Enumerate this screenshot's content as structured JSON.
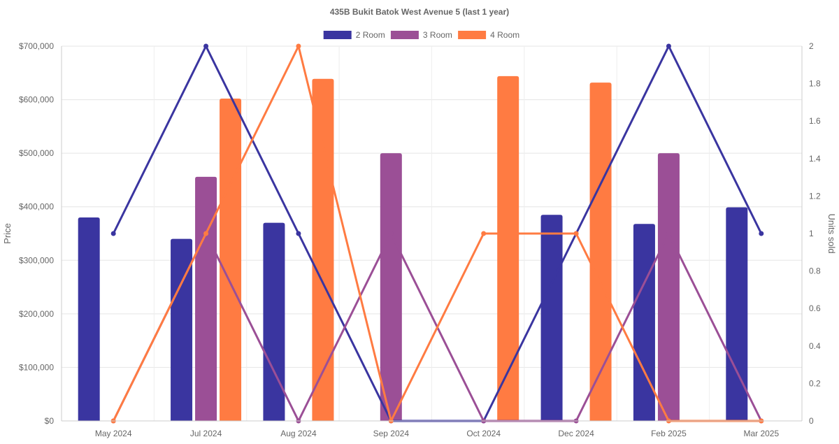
{
  "chart_data": {
    "type": "bar+line",
    "title": "435B Bukit Batok West Avenue 5 (last 1 year)",
    "categories": [
      "May 2024",
      "Jul 2024",
      "Aug 2024",
      "Sep 2024",
      "Oct 2024",
      "Dec 2024",
      "Feb 2025",
      "Mar 2025"
    ],
    "y_left": {
      "label": "Price",
      "min": 0,
      "max": 700000,
      "ticks": [
        0,
        100000,
        200000,
        300000,
        400000,
        500000,
        600000,
        700000
      ],
      "tick_labels": [
        "$0",
        "$100,000",
        "$200,000",
        "$300,000",
        "$400,000",
        "$500,000",
        "$600,000",
        "$700,000"
      ]
    },
    "y_right": {
      "label": "Units sold",
      "min": 0,
      "max": 2,
      "ticks": [
        0,
        0.2,
        0.4,
        0.6,
        0.8,
        1,
        1.2,
        1.4,
        1.6,
        1.8,
        2
      ],
      "tick_labels": [
        "0",
        "0.2",
        "0.4",
        "0.6",
        "0.8",
        "1",
        "1.2",
        "1.4",
        "1.6",
        "1.8",
        "2"
      ]
    },
    "legend": {
      "position": "top-center",
      "items": [
        {
          "name": "2 Room",
          "color": "#3a35a0"
        },
        {
          "name": "3 Room",
          "color": "#9b4f96"
        },
        {
          "name": "4 Room",
          "color": "#ff7b42"
        }
      ]
    },
    "bar_series": [
      {
        "name": "2 Room",
        "color": "#3a35a0",
        "values": [
          380000,
          340000,
          370000,
          null,
          null,
          385000,
          368000,
          399000
        ]
      },
      {
        "name": "3 Room",
        "color": "#9b4f96",
        "values": [
          null,
          456000,
          null,
          500000,
          null,
          null,
          500000,
          null
        ]
      },
      {
        "name": "4 Room",
        "color": "#ff7b42",
        "values": [
          null,
          602000,
          639000,
          null,
          644000,
          632000,
          null,
          null
        ]
      }
    ],
    "line_series": [
      {
        "name": "2 Room",
        "color": "#3a35a0",
        "values": [
          1,
          2,
          1,
          0,
          0,
          1,
          2,
          1
        ]
      },
      {
        "name": "3 Room",
        "color": "#9b4f96",
        "values": [
          0,
          1,
          0,
          1,
          0,
          0,
          1,
          0
        ]
      },
      {
        "name": "4 Room",
        "color": "#ff7b42",
        "values": [
          0,
          1,
          2,
          0,
          1,
          1,
          0,
          0
        ]
      }
    ]
  }
}
